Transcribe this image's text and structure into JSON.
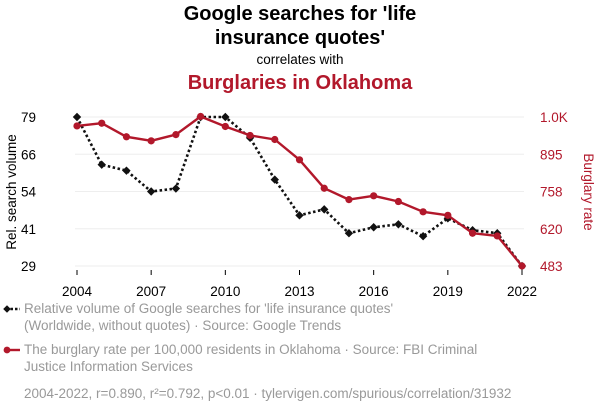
{
  "chart_data": {
    "type": "line",
    "title": "Google searches for 'life insurance quotes'",
    "title_lines": [
      "Google searches for 'life",
      "insurance quotes'"
    ],
    "connector": "correlates with",
    "subtitle": "Burglaries in Oklahoma",
    "x": [
      2004,
      2005,
      2006,
      2007,
      2008,
      2009,
      2010,
      2011,
      2012,
      2013,
      2014,
      2015,
      2016,
      2017,
      2018,
      2019,
      2020,
      2021,
      2022
    ],
    "x_ticks": [
      "2004",
      "2007",
      "2010",
      "2013",
      "2016",
      "2019",
      "2022"
    ],
    "y_left": {
      "label": "Rel. search volume",
      "ticks": [
        "29",
        "41",
        "54",
        "66",
        "79"
      ],
      "range": [
        29,
        79
      ]
    },
    "y_right": {
      "label": "Burglary rate",
      "ticks": [
        "483",
        "620",
        "758",
        "895",
        "1.0K"
      ],
      "range": [
        483,
        1033
      ]
    },
    "series": [
      {
        "axis": "left",
        "color": "#111111",
        "style": "dotted",
        "marker": "diamond",
        "values": [
          79,
          63,
          61,
          54,
          55,
          79,
          79,
          72,
          58,
          46,
          48,
          40,
          42,
          43,
          39,
          45,
          41,
          40,
          29
        ]
      },
      {
        "axis": "right",
        "color": "#b2182b",
        "style": "solid",
        "marker": "circle",
        "values": [
          1000,
          1010,
          960,
          945,
          968,
          1035,
          998,
          965,
          950,
          875,
          770,
          728,
          742,
          721,
          683,
          670,
          604,
          594,
          483
        ]
      }
    ],
    "legend": [
      {
        "lines": [
          "Relative volume of Google searches for 'life insurance quotes'",
          "(Worldwide, without quotes) · Source: Google Trends"
        ],
        "color": "#111111",
        "style": "dotted",
        "marker": "diamond"
      },
      {
        "lines": [
          "The burglary rate per 100,000 residents in Oklahoma · Source: FBI Criminal",
          "Justice Information Services"
        ],
        "color": "#b2182b",
        "style": "solid",
        "marker": "circle"
      }
    ],
    "legend_position": "bottom",
    "footer": "2004-2022, r=0.890, r²=0.792, p<0.01 · tylervigen.com/spurious/correlation/31932",
    "grid": true
  }
}
